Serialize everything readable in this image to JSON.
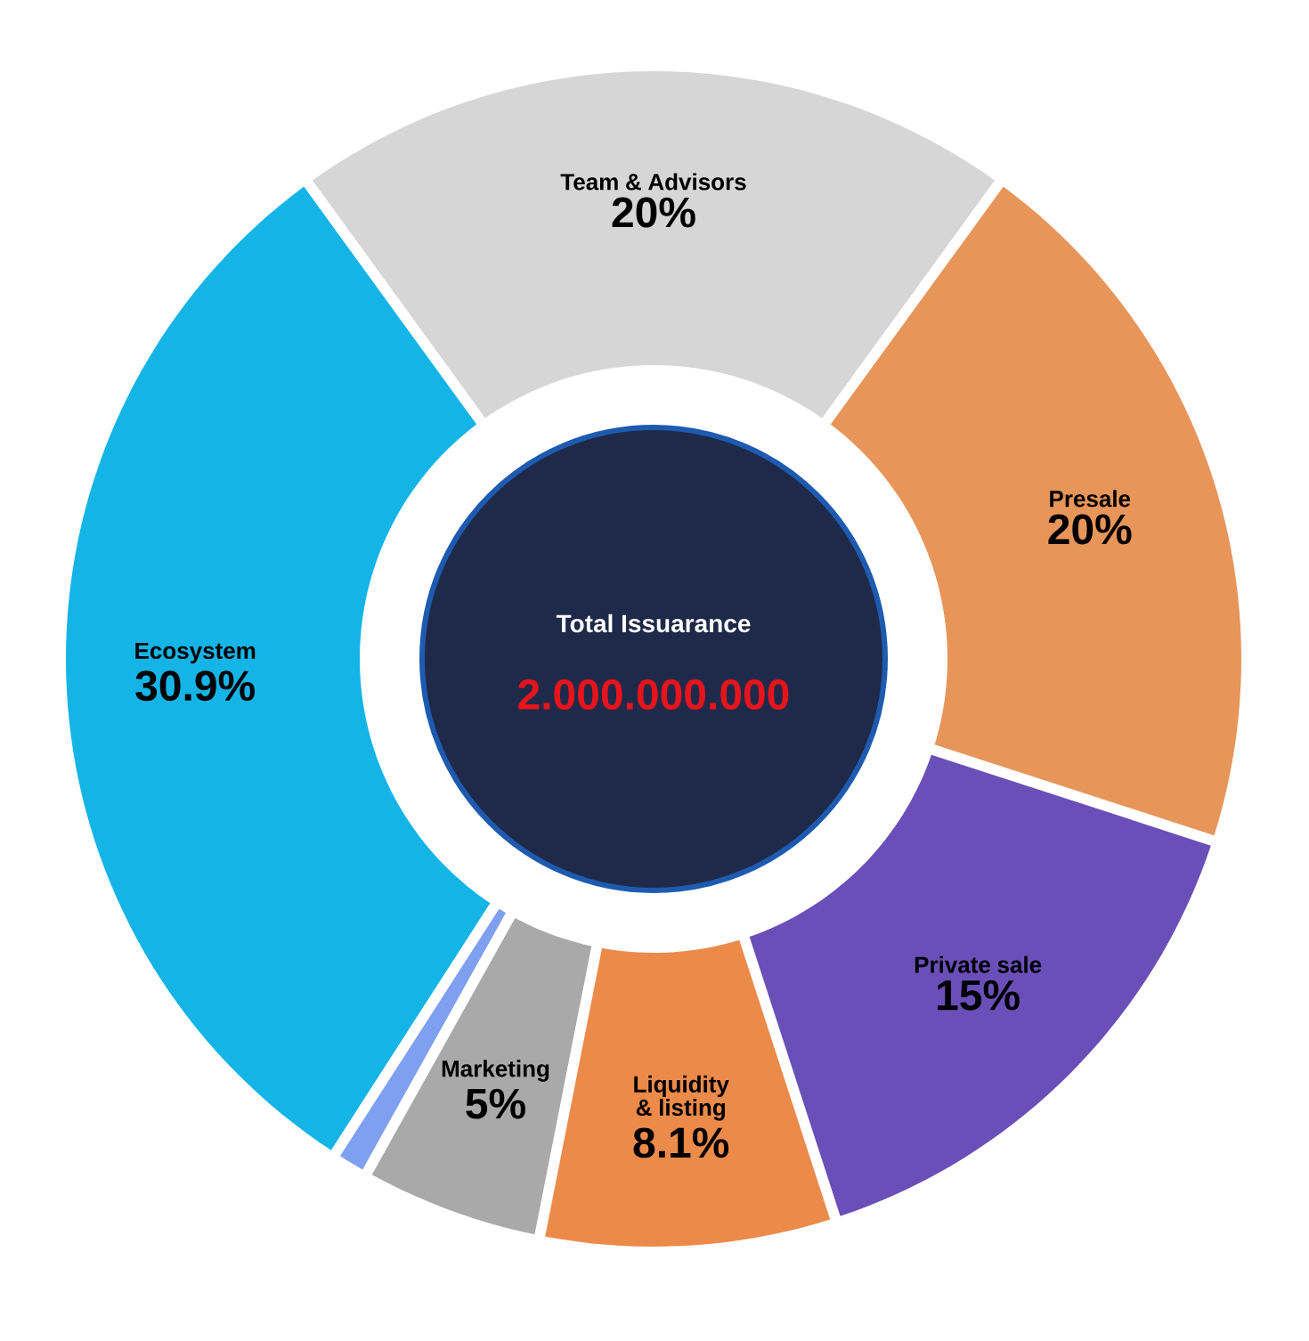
{
  "chart_data": {
    "type": "donut",
    "categories": [
      "Team & Advisors",
      "Presale",
      "Private sale",
      "Liquidity & listing",
      "Marketing",
      null,
      "Ecosystem"
    ],
    "values": [
      20,
      20,
      15,
      8.1,
      5,
      1,
      30.9
    ],
    "value_labels": [
      "20%",
      "20%",
      "15%",
      "8.1%",
      "5%",
      null,
      "30.9%"
    ],
    "colors": [
      "#d6d6d6",
      "#e8955a",
      "#6a4fb8",
      "#ec8a4a",
      "#a9a9a9",
      "#7fa0f0",
      "#14b4e6"
    ],
    "annotations": [
      "Total Issuarance",
      "2.000.000.000"
    ]
  }
}
